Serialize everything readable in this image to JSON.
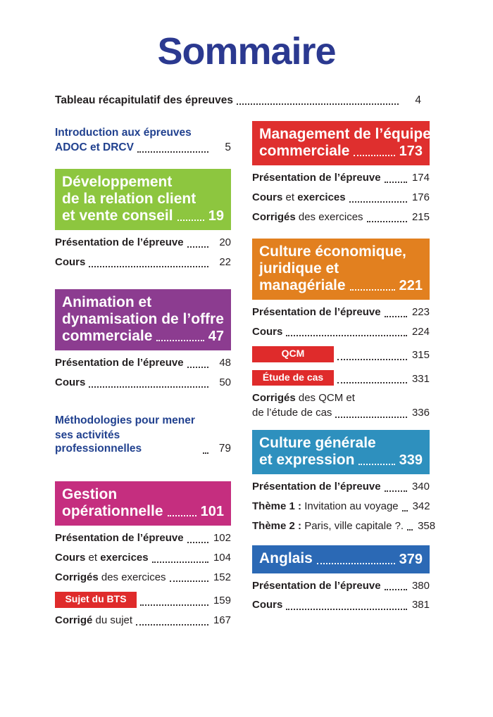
{
  "title": "Sommaire",
  "top_row": {
    "label": "Tableau récapitulatif des épreuves",
    "page": "4"
  },
  "colors": {
    "navy": "#2B3990",
    "blue_text": "#21418F",
    "green": "#8DC63F",
    "purple": "#8C3C90",
    "pink": "#C52E7F",
    "red": "#DF2F2E",
    "badge_red": "#DF2B2B",
    "orange": "#E2801F",
    "light_blue": "#2E90BE",
    "dark_blue": "#2B69B5",
    "ink": "#231F20"
  },
  "left": {
    "intro": {
      "line1": "Introduction aux épreuves",
      "line2": "ADOC et DRCV",
      "page": "5"
    },
    "dev": {
      "l1": "Développement",
      "l2": "de la relation client",
      "last": "et vente conseil",
      "page": "19",
      "items": [
        {
          "b1": "Présentation de l’épreuve",
          "r1": "",
          "b2": "",
          "page": "20"
        },
        {
          "b1": "Cours",
          "r1": "",
          "b2": "",
          "page": "22"
        }
      ]
    },
    "anim": {
      "l1": "Animation et",
      "l2": "dynamisation de l’offre",
      "last": "commerciale",
      "page": "47",
      "items": [
        {
          "b1": "Présentation de l’épreuve",
          "r1": "",
          "b2": "",
          "page": "48"
        },
        {
          "b1": "Cours",
          "r1": "",
          "b2": "",
          "page": "50"
        }
      ]
    },
    "methodo": {
      "line1": "Méthodologies pour mener",
      "line2": "ses activités professionnelles",
      "page": "79"
    },
    "gestion": {
      "l1": "Gestion",
      "last": "opérationnelle",
      "page": "101",
      "items": [
        {
          "b1": "Présentation de l’épreuve",
          "r1": "",
          "b2": "",
          "page": "102"
        },
        {
          "b1": "Cours",
          "r1": " et ",
          "b2": "exercices",
          "page": "104"
        },
        {
          "b1": "Corrigés",
          "r1": " des exercices",
          "b2": "",
          "page": "152"
        }
      ],
      "badge": {
        "label": "Sujet du BTS",
        "page": "159"
      },
      "after": {
        "b1": "Corrigé",
        "r1": " du sujet",
        "b2": "",
        "page": "167"
      }
    }
  },
  "right": {
    "management": {
      "l1": "Management de l’équipe",
      "last": "commerciale",
      "page": "173",
      "items": [
        {
          "b1": "Présentation de l’épreuve",
          "r1": "",
          "b2": "",
          "page": "174"
        },
        {
          "b1": "Cours",
          "r1": " et ",
          "b2": "exercices",
          "page": "176"
        },
        {
          "b1": "Corrigés",
          "r1": " des exercices",
          "b2": "",
          "page": "215"
        }
      ]
    },
    "cejm": {
      "l1": "Culture économique,",
      "l2": "juridique et",
      "last": "managériale",
      "page": "221",
      "items": [
        {
          "b1": "Présentation de l’épreuve",
          "r1": "",
          "b2": "",
          "page": "223"
        },
        {
          "b1": "Cours",
          "r1": "",
          "b2": "",
          "page": "224"
        }
      ],
      "badges": [
        {
          "label": "QCM",
          "page": "315"
        },
        {
          "label": "Étude de cas",
          "page": "331"
        }
      ],
      "twoline": {
        "b1": "Corrigés",
        "r1": " des QCM et",
        "line2": "de l’étude de cas",
        "page": "336"
      }
    },
    "culture": {
      "l1": "Culture générale",
      "last": "et expression",
      "page": "339",
      "items": [
        {
          "b1": "Présentation de l’épreuve",
          "r1": "",
          "b2": "",
          "page": "340"
        },
        {
          "b1": "Thème 1 :",
          "r1": " Invitation au voyage",
          "b2": "",
          "page": "342"
        },
        {
          "b1": "Thème 2 :",
          "r1": " Paris, ville capitale ?.",
          "b2": "",
          "page": "358"
        }
      ]
    },
    "anglais": {
      "last": "Anglais",
      "page": "379",
      "items": [
        {
          "b1": "Présentation de l’épreuve",
          "r1": "",
          "b2": "",
          "page": "380"
        },
        {
          "b1": "Cours",
          "r1": "",
          "b2": "",
          "page": "381"
        }
      ]
    }
  }
}
